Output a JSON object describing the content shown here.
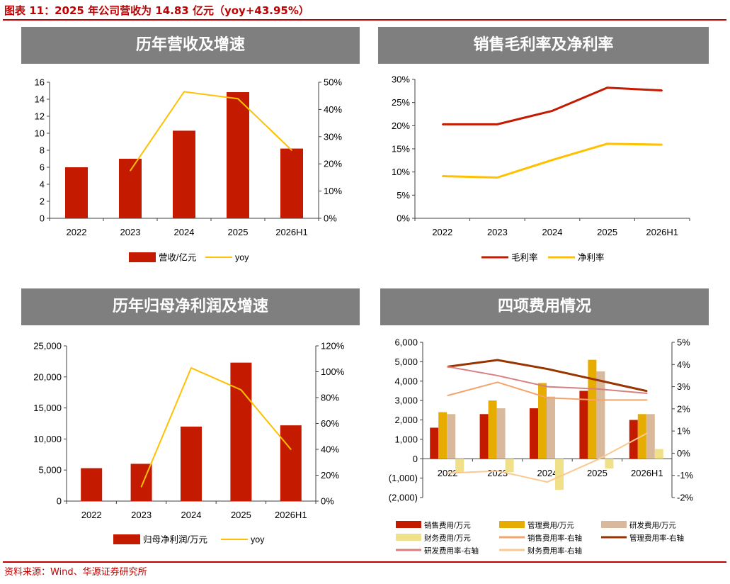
{
  "figure_title": "图表 11：2025 年公司营收为 14.83 亿元（yoy+43.95%）",
  "source_note": "资料来源：Wind、华源证券研究所",
  "colors": {
    "red": "#c00000",
    "bar_red": "#c41a00",
    "yellow": "#ffc000",
    "gold": "#e6ac00",
    "tan": "#d9b99b",
    "khaki": "#f0e08a",
    "salmon": "#f4a46a",
    "brown": "#993300",
    "pink": "#d87f7f",
    "peach": "#fac890",
    "header_gray": "#7f7f7f"
  },
  "chart_data": [
    {
      "id": "revenue",
      "type": "bar",
      "title": "历年营收及增速",
      "categories": [
        "2022",
        "2023",
        "2024",
        "2025",
        "2026H1"
      ],
      "series": [
        {
          "name": "营收/亿元",
          "kind": "bar",
          "axis": "left",
          "color": "#c41a00",
          "values": [
            6.0,
            7.0,
            10.3,
            14.83,
            8.2
          ]
        },
        {
          "name": "yoy",
          "kind": "line",
          "axis": "right",
          "color": "#ffc000",
          "values": [
            null,
            17.5,
            46.5,
            43.95,
            25.0
          ]
        }
      ],
      "y_left": {
        "min": 0,
        "max": 16,
        "step": 2,
        "ticks": [
          "0",
          "2",
          "4",
          "6",
          "8",
          "10",
          "12",
          "14",
          "16"
        ]
      },
      "y_right": {
        "min": 0,
        "max": 50,
        "step": 10,
        "ticks": [
          "0%",
          "10%",
          "20%",
          "30%",
          "40%",
          "50%"
        ]
      },
      "legend": "bottom",
      "grid": false
    },
    {
      "id": "margins",
      "type": "line",
      "title": "销售毛利率及净利率",
      "categories": [
        "2022",
        "2023",
        "2024",
        "2025",
        "2026H1"
      ],
      "series": [
        {
          "name": "毛利率",
          "color": "#c41a00",
          "values": [
            20.3,
            20.3,
            23.2,
            28.2,
            27.6
          ]
        },
        {
          "name": "净利率",
          "color": "#ffc000",
          "values": [
            9.1,
            8.8,
            12.6,
            16.1,
            15.9
          ]
        }
      ],
      "y_left": {
        "min": 0,
        "max": 30,
        "step": 5,
        "ticks": [
          "0%",
          "5%",
          "10%",
          "15%",
          "20%",
          "25%",
          "30%"
        ]
      },
      "legend": "bottom",
      "grid": false
    },
    {
      "id": "net-profit",
      "type": "bar",
      "title": "历年归母净利润及增速",
      "categories": [
        "2022",
        "2023",
        "2024",
        "2025",
        "2026H1"
      ],
      "series": [
        {
          "name": "归母净利润/万元",
          "kind": "bar",
          "axis": "left",
          "color": "#c41a00",
          "values": [
            5300,
            6000,
            12000,
            22300,
            12200
          ]
        },
        {
          "name": "yoy",
          "kind": "line",
          "axis": "right",
          "color": "#ffc000",
          "values": [
            null,
            11,
            103,
            86,
            40
          ]
        }
      ],
      "y_left": {
        "min": 0,
        "max": 25000,
        "step": 5000,
        "ticks": [
          "0",
          "5,000",
          "10,000",
          "15,000",
          "20,000",
          "25,000"
        ]
      },
      "y_right": {
        "min": 0,
        "max": 120,
        "step": 20,
        "ticks": [
          "0%",
          "20%",
          "40%",
          "60%",
          "80%",
          "100%",
          "120%"
        ]
      },
      "legend": "bottom",
      "grid": false
    },
    {
      "id": "expenses",
      "type": "bar",
      "title": "四项费用情况",
      "categories": [
        "2022",
        "2023",
        "2024",
        "2025",
        "2026H1"
      ],
      "series": [
        {
          "name": "销售费用/万元",
          "kind": "bar",
          "axis": "left",
          "color": "#c41a00",
          "values": [
            1600,
            2300,
            2600,
            3500,
            2000
          ]
        },
        {
          "name": "管理费用/万元",
          "kind": "bar",
          "axis": "left",
          "color": "#e6ac00",
          "values": [
            2400,
            3000,
            3900,
            5100,
            2300
          ]
        },
        {
          "name": "研发费用/万元",
          "kind": "bar",
          "axis": "left",
          "color": "#d9b99b",
          "values": [
            2300,
            2600,
            3200,
            4500,
            2300
          ]
        },
        {
          "name": "财务费用/万元",
          "kind": "bar",
          "axis": "left",
          "color": "#f0e08a",
          "values": [
            -700,
            -700,
            -1600,
            -500,
            500
          ]
        },
        {
          "name": "销售费用率-右轴",
          "kind": "line",
          "axis": "right",
          "color": "#f4a46a",
          "values": [
            2.6,
            3.2,
            2.5,
            2.4,
            2.4
          ]
        },
        {
          "name": "管理费用率-右轴",
          "kind": "line",
          "axis": "right",
          "color": "#993300",
          "values": [
            3.9,
            4.2,
            3.8,
            3.3,
            2.8
          ]
        },
        {
          "name": "研发费用率-右轴",
          "kind": "line",
          "axis": "right",
          "color": "#d87f7f",
          "values": [
            3.9,
            3.5,
            3.0,
            2.9,
            2.7
          ]
        },
        {
          "name": "财务费用率-右轴",
          "kind": "line",
          "axis": "right",
          "color": "#fac890",
          "values": [
            -0.9,
            -0.8,
            -1.3,
            -0.3,
            0.9
          ]
        }
      ],
      "y_left": {
        "min": -2000,
        "max": 6000,
        "step": 1000,
        "ticks": [
          "(2,000)",
          "(1,000)",
          "0",
          "1,000",
          "2,000",
          "3,000",
          "4,000",
          "5,000",
          "6,000"
        ]
      },
      "y_right": {
        "min": -2,
        "max": 5,
        "step": 1,
        "ticks": [
          "-2%",
          "-1%",
          "0%",
          "1%",
          "2%",
          "3%",
          "4%",
          "5%"
        ]
      },
      "legend": "bottom",
      "grid": false
    }
  ]
}
